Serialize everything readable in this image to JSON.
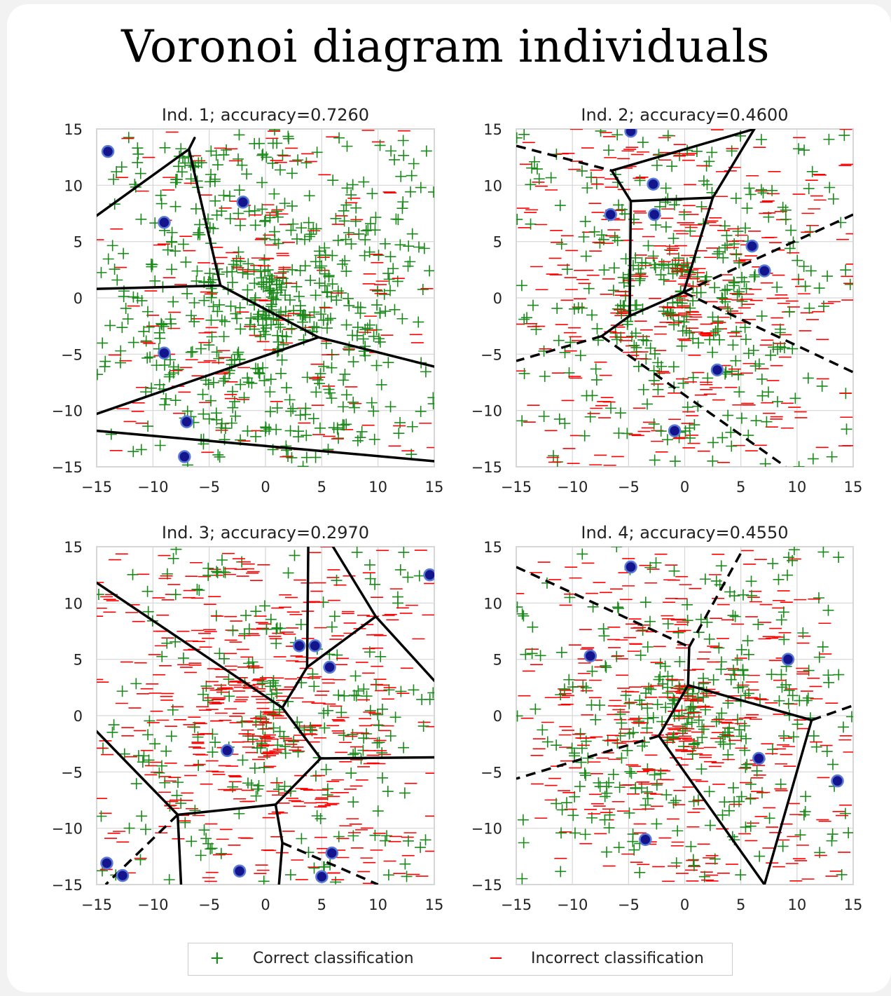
{
  "title": "Voronoi diagram individuals",
  "legend": {
    "correct_symbol": "+",
    "correct_label": "Correct classification",
    "incorrect_symbol": "−",
    "incorrect_label": "Incorrect classification"
  },
  "colors": {
    "correct": "#1a8a1a",
    "incorrect": "#ff0000",
    "center_fill": "#14148c",
    "center_edge": "#5a7ad8",
    "boundary": "#000000",
    "grid": "#d6d6d6"
  },
  "chart_data": [
    {
      "type": "scatter",
      "title": "Ind. 1; accuracy=0.7260",
      "xlim": [
        -15,
        15
      ],
      "ylim": [
        -15,
        15
      ],
      "xticks": [
        -15,
        -10,
        -5,
        0,
        5,
        10,
        15
      ],
      "yticks": [
        -15,
        -10,
        -5,
        0,
        5,
        10,
        15
      ],
      "grid": true,
      "centers": [
        [
          -14,
          13
        ],
        [
          -2,
          8.5
        ],
        [
          -9,
          6.7
        ],
        [
          -9,
          -4.9
        ],
        [
          -7,
          -11
        ],
        [
          -7.2,
          -14.1
        ]
      ],
      "solid_edges": [
        [
          [
            -15,
            7.3
          ],
          [
            -6.8,
            13.2
          ]
        ],
        [
          [
            -6.8,
            13.2
          ],
          [
            -6.3,
            14.2
          ]
        ],
        [
          [
            -6.8,
            13.2
          ],
          [
            -4,
            1.1
          ]
        ],
        [
          [
            -15,
            0.8
          ],
          [
            -4,
            1.1
          ]
        ],
        [
          [
            -4,
            1.1
          ],
          [
            4.7,
            -3.5
          ]
        ],
        [
          [
            -15,
            -10.3
          ],
          [
            4.7,
            -3.5
          ]
        ],
        [
          [
            4.7,
            -3.5
          ],
          [
            15,
            -6.1
          ]
        ],
        [
          [
            -15,
            -11.8
          ],
          [
            15,
            -14.5
          ]
        ]
      ],
      "dashed_edges": []
    },
    {
      "type": "scatter",
      "title": "Ind. 2; accuracy=0.4600",
      "xlim": [
        -15,
        15
      ],
      "ylim": [
        -15,
        15
      ],
      "xticks": [
        -15,
        -10,
        -5,
        0,
        5,
        10,
        15
      ],
      "yticks": [
        -15,
        -10,
        -5,
        0,
        5,
        10,
        15
      ],
      "grid": true,
      "centers": [
        [
          -4.8,
          14.8
        ],
        [
          -2.8,
          10.1
        ],
        [
          -6.6,
          7.4
        ],
        [
          -2.7,
          7.4
        ],
        [
          6,
          4.6
        ],
        [
          7.1,
          2.4
        ],
        [
          2.9,
          -6.4
        ],
        [
          -0.9,
          -11.8
        ]
      ],
      "solid_edges": [
        [
          [
            -6.5,
            11.3
          ],
          [
            6.2,
            15
          ]
        ],
        [
          [
            -6.5,
            11.3
          ],
          [
            -4.8,
            8.6
          ]
        ],
        [
          [
            -4.8,
            8.6
          ],
          [
            2.5,
            8.9
          ]
        ],
        [
          [
            -4.8,
            8.6
          ],
          [
            -4.9,
            -1.6
          ]
        ],
        [
          [
            2.5,
            8.9
          ],
          [
            6.2,
            15
          ]
        ],
        [
          [
            2.5,
            8.9
          ],
          [
            -0.1,
            0.5
          ]
        ],
        [
          [
            -0.1,
            0.5
          ],
          [
            -4.9,
            -1.6
          ]
        ],
        [
          [
            -4.9,
            -1.6
          ],
          [
            -7.4,
            -3.4
          ]
        ]
      ],
      "dashed_edges": [
        [
          [
            -15,
            13.5
          ],
          [
            -6.5,
            11.3
          ]
        ],
        [
          [
            -0.1,
            0.5
          ],
          [
            15,
            7.4
          ]
        ],
        [
          [
            -0.1,
            0.5
          ],
          [
            15,
            -6.6
          ]
        ],
        [
          [
            -7.4,
            -3.4
          ],
          [
            -15,
            -5.6
          ]
        ],
        [
          [
            -7.4,
            -3.4
          ],
          [
            9,
            -15
          ]
        ]
      ]
    },
    {
      "type": "scatter",
      "title": "Ind. 3; accuracy=0.2970",
      "xlim": [
        -15,
        15
      ],
      "ylim": [
        -15,
        15
      ],
      "xticks": [
        -15,
        -10,
        -5,
        0,
        5,
        10,
        15
      ],
      "yticks": [
        -15,
        -10,
        -5,
        0,
        5,
        10,
        15
      ],
      "grid": true,
      "centers": [
        [
          14.6,
          12.5
        ],
        [
          3,
          6.2
        ],
        [
          4.4,
          6.2
        ],
        [
          5.7,
          4.3
        ],
        [
          -3.4,
          -3.1
        ],
        [
          -14.1,
          -13.1
        ],
        [
          -12.7,
          -14.2
        ],
        [
          -2.3,
          -13.8
        ],
        [
          5.9,
          -12.2
        ],
        [
          5,
          -14.3
        ]
      ],
      "solid_edges": [
        [
          [
            -15,
            11.8
          ],
          [
            1.5,
            0.7
          ]
        ],
        [
          [
            3.8,
            15
          ],
          [
            3.7,
            4.3
          ]
        ],
        [
          [
            6,
            15
          ],
          [
            9.8,
            8.8
          ]
        ],
        [
          [
            9.8,
            8.8
          ],
          [
            15,
            3.1
          ]
        ],
        [
          [
            9.8,
            8.8
          ],
          [
            3.7,
            4.3
          ]
        ],
        [
          [
            3.7,
            4.3
          ],
          [
            1.5,
            0.7
          ]
        ],
        [
          [
            1.5,
            0.7
          ],
          [
            4.9,
            -3.8
          ]
        ],
        [
          [
            4.9,
            -3.8
          ],
          [
            15,
            -3.7
          ]
        ],
        [
          [
            4.9,
            -3.8
          ],
          [
            0.9,
            -7.9
          ]
        ],
        [
          [
            0.9,
            -7.9
          ],
          [
            -7.8,
            -8.8
          ]
        ],
        [
          [
            -7.8,
            -8.8
          ],
          [
            -15,
            -1.4
          ]
        ],
        [
          [
            -7.8,
            -8.8
          ],
          [
            -7.5,
            -15
          ]
        ],
        [
          [
            0.9,
            -7.9
          ],
          [
            1.5,
            -11.3
          ]
        ],
        [
          [
            1.5,
            -11.3
          ],
          [
            1.2,
            -15
          ]
        ]
      ],
      "dashed_edges": [
        [
          [
            -7.8,
            -8.8
          ],
          [
            -14.2,
            -15
          ]
        ],
        [
          [
            1.5,
            -11.3
          ],
          [
            10,
            -15
          ]
        ]
      ]
    },
    {
      "type": "scatter",
      "title": "Ind. 4; accuracy=0.4550",
      "xlim": [
        -15,
        15
      ],
      "ylim": [
        -15,
        15
      ],
      "xticks": [
        -15,
        -10,
        -5,
        0,
        5,
        10,
        15
      ],
      "yticks": [
        -15,
        -10,
        -5,
        0,
        5,
        10,
        15
      ],
      "grid": true,
      "centers": [
        [
          -4.8,
          13.2
        ],
        [
          -8.4,
          5.3
        ],
        [
          9.2,
          5
        ],
        [
          6.6,
          -3.8
        ],
        [
          13.6,
          -5.8
        ],
        [
          -3.5,
          -11
        ]
      ],
      "solid_edges": [
        [
          [
            0.4,
            6.1
          ],
          [
            0.3,
            2.7
          ]
        ],
        [
          [
            0.3,
            2.7
          ],
          [
            11.3,
            -0.4
          ]
        ],
        [
          [
            0.3,
            2.7
          ],
          [
            -2.3,
            -1.8
          ]
        ],
        [
          [
            -2.3,
            -1.8
          ],
          [
            7.1,
            -15
          ]
        ],
        [
          [
            11.3,
            -0.4
          ],
          [
            7.1,
            -15
          ]
        ]
      ],
      "dashed_edges": [
        [
          [
            -15,
            13.2
          ],
          [
            0.4,
            6.1
          ]
        ],
        [
          [
            0.4,
            6.1
          ],
          [
            5.2,
            14.8
          ]
        ],
        [
          [
            -2.3,
            -1.8
          ],
          [
            -15,
            -5.6
          ]
        ],
        [
          [
            11.3,
            -0.4
          ],
          [
            15,
            0.9
          ]
        ]
      ]
    }
  ]
}
